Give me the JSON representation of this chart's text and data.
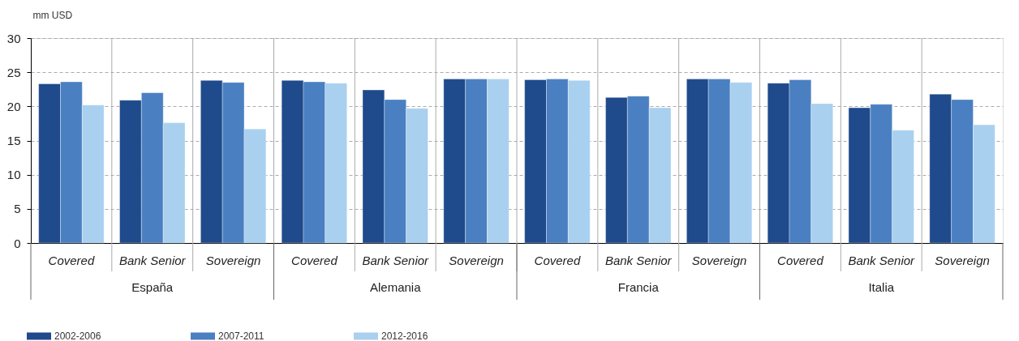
{
  "chart_data": {
    "type": "bar",
    "ylabel": "mm USD",
    "categories": [
      "Covered",
      "Bank Senior",
      "Sovereign",
      "Covered",
      "Bank Senior",
      "Sovereign",
      "Covered",
      "Bank Senior",
      "Sovereign",
      "Covered",
      "Bank Senior",
      "Sovereign"
    ],
    "annotations": [
      "España",
      "Alemania",
      "Francia",
      "Italia"
    ],
    "series": [
      {
        "name": "2002-2006",
        "color": "#1f4a8c",
        "values": [
          23.3,
          20.9,
          23.8,
          23.8,
          22.4,
          24.0,
          23.9,
          21.3,
          24.0,
          23.4,
          19.8,
          21.8
        ]
      },
      {
        "name": "2007-2011",
        "color": "#4a80c2",
        "values": [
          23.6,
          22.0,
          23.5,
          23.6,
          21.0,
          24.0,
          24.0,
          21.5,
          24.0,
          23.9,
          20.3,
          21.0
        ]
      },
      {
        "name": "2012-2016",
        "color": "#a9d0ef",
        "values": [
          20.2,
          17.6,
          16.7,
          23.4,
          19.7,
          24.0,
          23.8,
          19.8,
          23.5,
          20.4,
          16.5,
          17.3
        ]
      }
    ],
    "ylim": [
      0,
      30
    ],
    "yticks": [
      0,
      5,
      10,
      15,
      20,
      25,
      30
    ],
    "grid": true,
    "legend": "bottom left"
  }
}
